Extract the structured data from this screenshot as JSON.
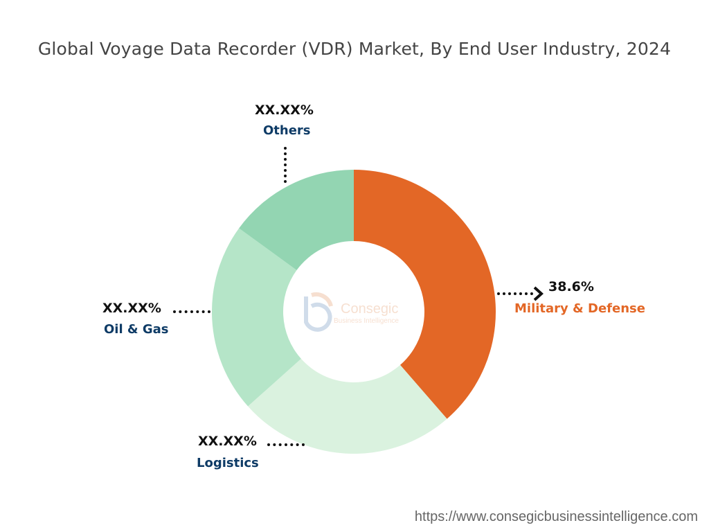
{
  "chart_data": {
    "type": "pie",
    "title": "Global Voyage Data Recorder (VDR) Market, By End User Industry, 2024",
    "donut": true,
    "categories": [
      "Military & Defense",
      "Logistics",
      "Oil & Gas",
      "Others"
    ],
    "values": [
      38.6,
      24.8,
      21.6,
      15.0
    ],
    "labels": [
      "38.6%",
      "XX.XX%",
      "XX.XX%",
      "XX.XX%"
    ],
    "colors": [
      "#E36726",
      "#DAF2DF",
      "#B5E5C8",
      "#93D5B2"
    ],
    "label_colors": [
      "#E36726",
      "#0E3B66",
      "#0E3B66",
      "#0E3B66"
    ]
  },
  "logo": {
    "name": "Consegic",
    "tagline": "Business Intelligence"
  },
  "footer_url": "https://www.consegicbusinessintelligence.com"
}
